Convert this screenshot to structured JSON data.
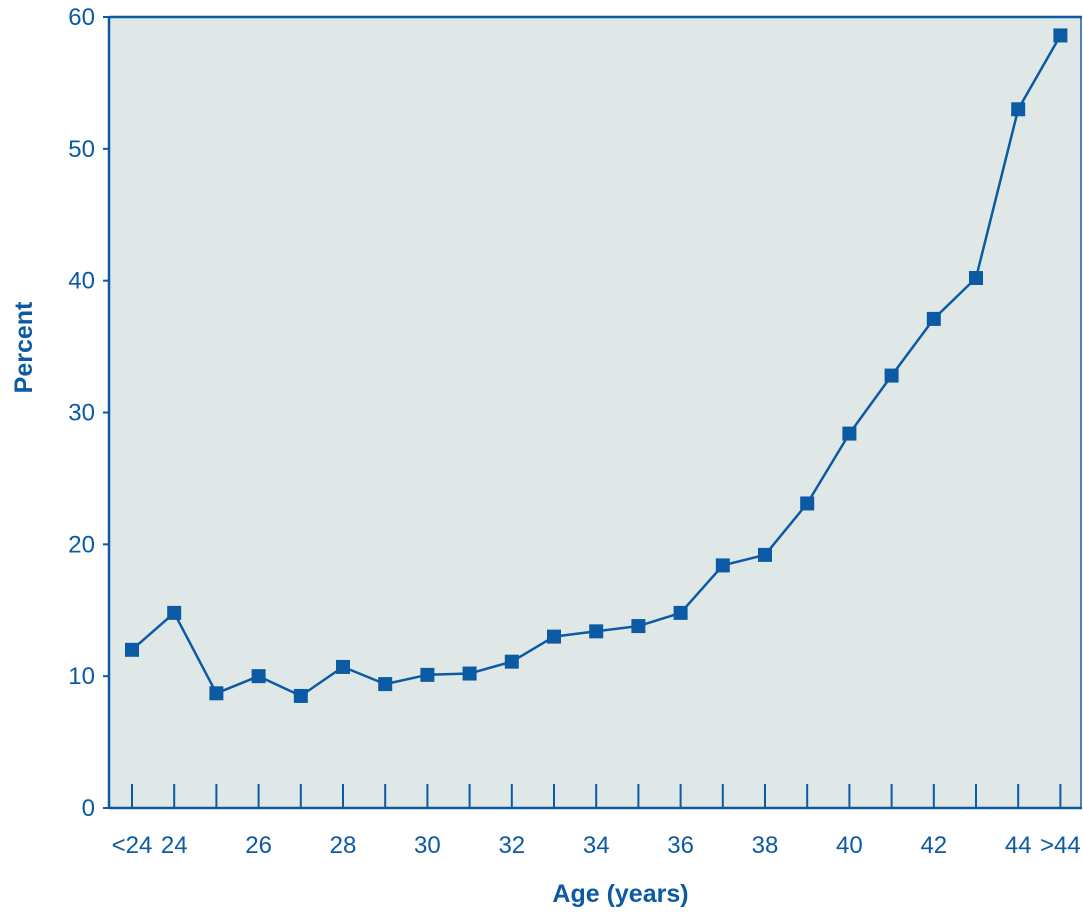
{
  "chart_data": {
    "type": "line",
    "xlabel": "Age (years)",
    "ylabel": "Percent",
    "ylim": [
      0,
      60
    ],
    "y_ticks": [
      0,
      10,
      20,
      30,
      40,
      50,
      60
    ],
    "grid": false,
    "categories": [
      "<24",
      "24",
      "25",
      "26",
      "27",
      "28",
      "29",
      "30",
      "31",
      "32",
      "33",
      "34",
      "35",
      "36",
      "37",
      "38",
      "39",
      "40",
      "41",
      "42",
      "43",
      "44",
      ">44"
    ],
    "tick_labels": [
      "<24",
      "24",
      "",
      "26",
      "",
      "28",
      "",
      "30",
      "",
      "32",
      "",
      "34",
      "",
      "36",
      "",
      "38",
      "",
      "40",
      "",
      "42",
      "",
      "44",
      ">44"
    ],
    "series": [
      {
        "values": [
          12.0,
          14.8,
          8.7,
          10.0,
          8.5,
          10.7,
          9.4,
          10.1,
          10.2,
          11.1,
          13.0,
          13.4,
          13.8,
          14.8,
          18.4,
          19.2,
          23.1,
          28.4,
          32.8,
          37.1,
          40.2,
          53.0,
          58.6
        ]
      }
    ],
    "colors": {
      "line": "#0b5aa3",
      "marker": "#0b5aa3",
      "plot_background": "#e0e8e7",
      "axis": "#0b5aa3",
      "text": "#0b5aa3"
    },
    "marker": "square"
  }
}
